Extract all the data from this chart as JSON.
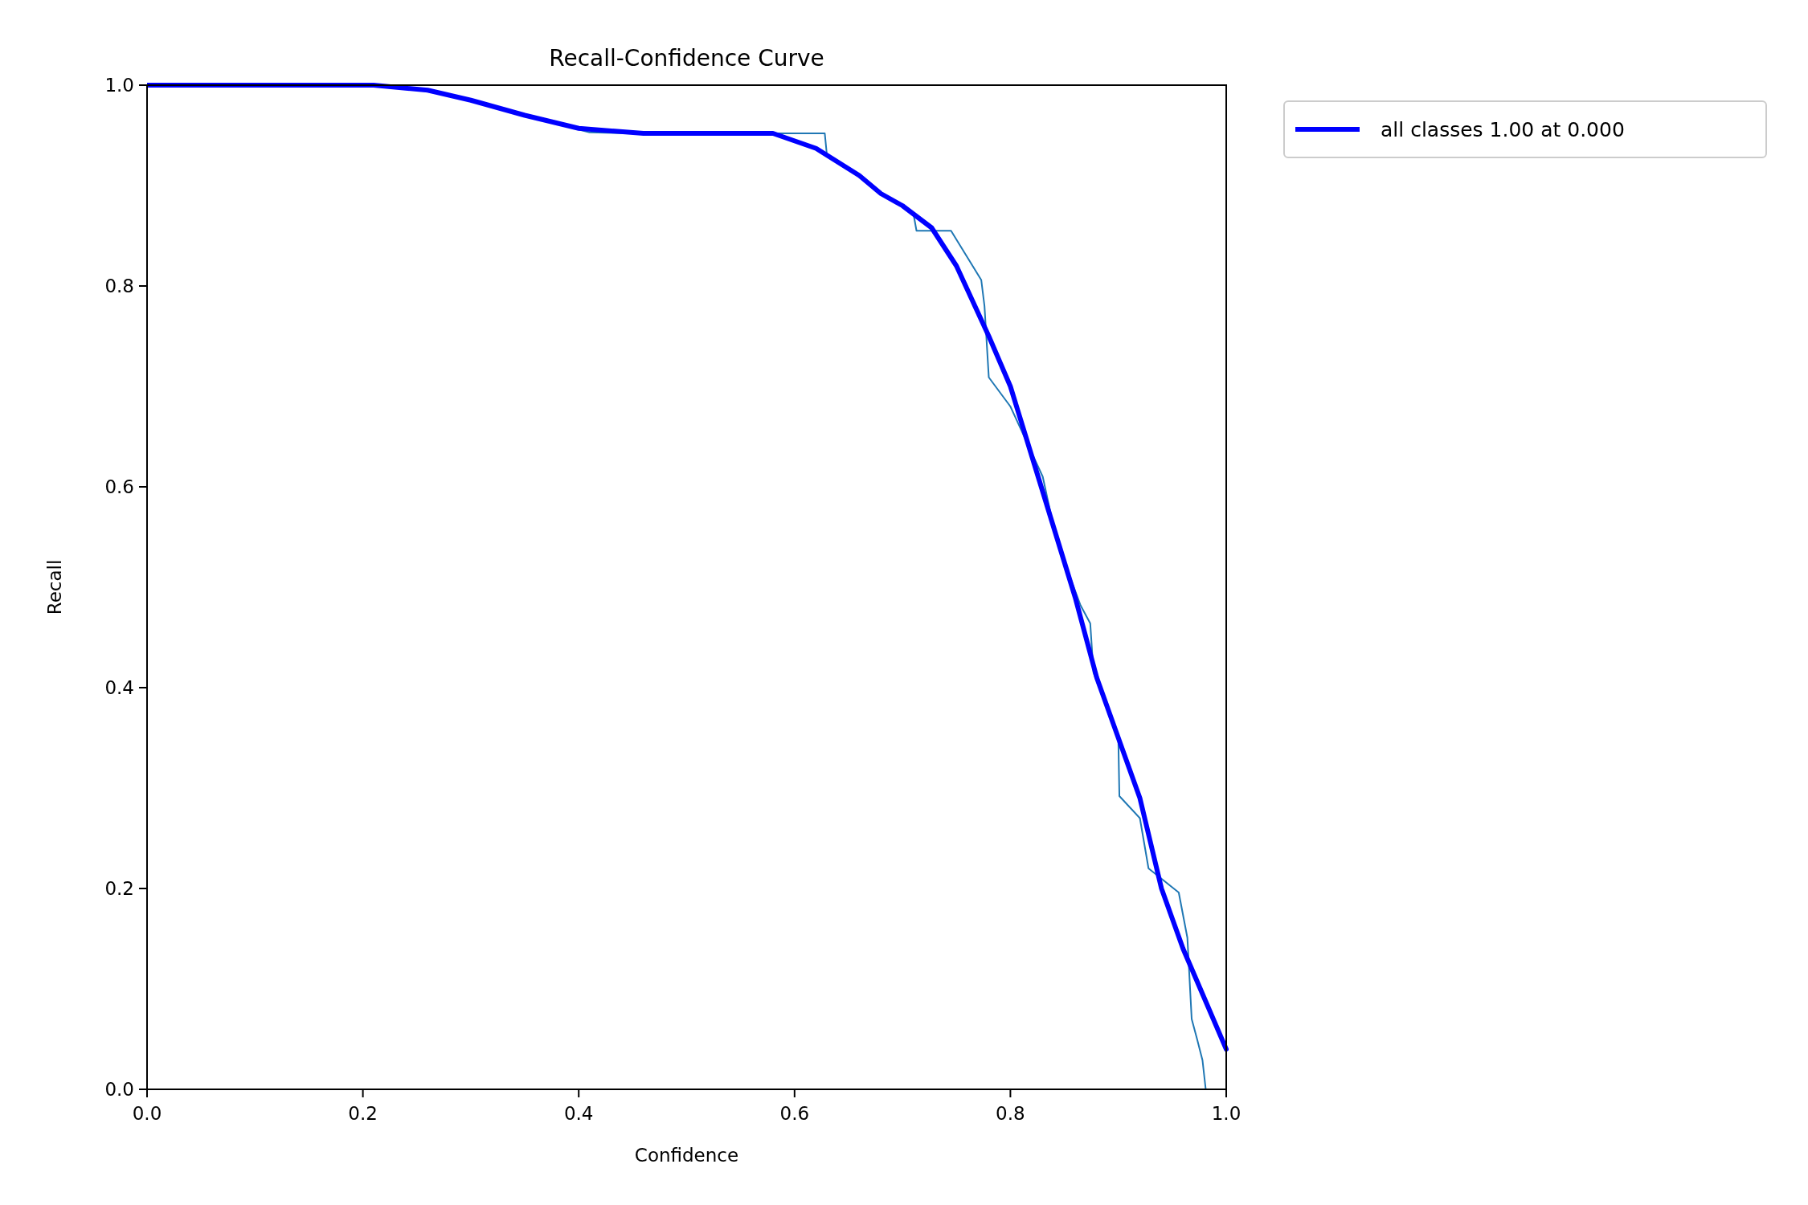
{
  "chart_data": {
    "type": "line",
    "title": "Recall-Confidence Curve",
    "xlabel": "Confidence",
    "ylabel": "Recall",
    "xlim": [
      0,
      1
    ],
    "ylim": [
      0,
      1
    ],
    "xticks": [
      {
        "value": 0,
        "label": "0.0"
      },
      0.2,
      0.4,
      0.6,
      0.8,
      {
        "value": 1,
        "label": "1.0"
      }
    ],
    "yticks": [
      {
        "value": 0,
        "label": "0.0"
      },
      0.2,
      0.4,
      0.6,
      0.8,
      {
        "value": 1,
        "label": "1.0"
      }
    ],
    "legend": "top right",
    "grid": false,
    "series": [
      {
        "color": "#1f77b4",
        "x": [
          0.35,
          0.41,
          0.45,
          0.58,
          0.628,
          0.63,
          0.66,
          0.68,
          0.71,
          0.713,
          0.745,
          0.773,
          0.776,
          0.78,
          0.8,
          0.83,
          0.835,
          0.84,
          0.845,
          0.865,
          0.874,
          0.877,
          0.9,
          0.901,
          0.92,
          0.928,
          0.956,
          0.964,
          0.968,
          0.973,
          0.978,
          0.981
        ],
        "values": [
          0.97,
          0.953,
          0.952,
          0.952,
          0.952,
          0.93,
          0.91,
          0.893,
          0.873,
          0.855,
          0.855,
          0.806,
          0.78,
          0.709,
          0.68,
          0.61,
          0.585,
          0.56,
          0.54,
          0.482,
          0.464,
          0.415,
          0.35,
          0.292,
          0.27,
          0.22,
          0.196,
          0.151,
          0.07,
          0.05,
          0.029,
          0
        ]
      },
      {
        "name": "all classes 1.00 at 0.000",
        "color": "#0000ff",
        "x": [
          0,
          0.21,
          0.26,
          0.3,
          0.35,
          0.4,
          0.46,
          0.58,
          0.62,
          0.66,
          0.68,
          0.7,
          0.727,
          0.75,
          0.78,
          0.8,
          0.82,
          0.84,
          0.86,
          0.88,
          0.9,
          0.92,
          0.94,
          0.96,
          0.98,
          1
        ],
        "values": [
          1,
          1,
          0.995,
          0.985,
          0.97,
          0.957,
          0.952,
          0.952,
          0.937,
          0.91,
          0.892,
          0.88,
          0.858,
          0.82,
          0.75,
          0.7,
          0.63,
          0.56,
          0.49,
          0.41,
          0.35,
          0.29,
          0.2,
          0.14,
          0.09,
          0.04
        ]
      }
    ]
  }
}
